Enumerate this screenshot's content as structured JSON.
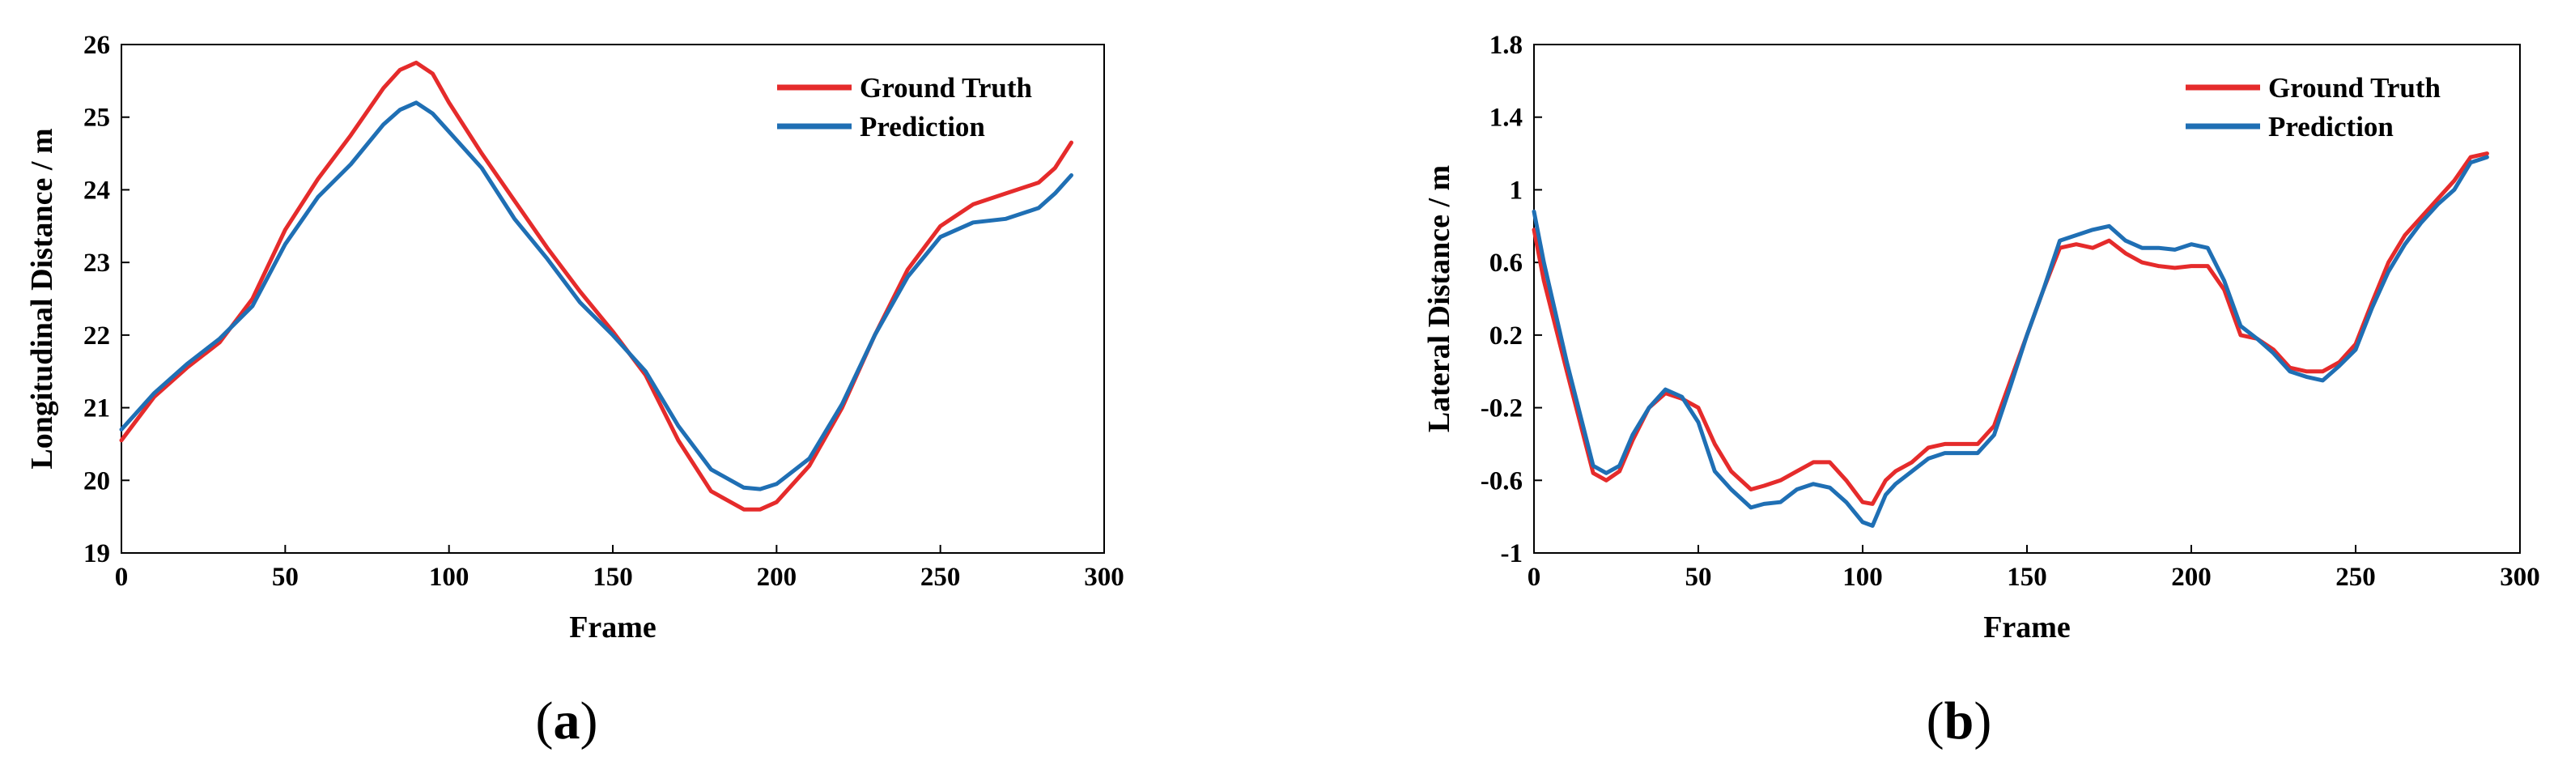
{
  "colors": {
    "ground_truth": "#e52b2b",
    "prediction": "#1f6fb4"
  },
  "chart_data": [
    {
      "type": "line",
      "panel_label": "a",
      "title": "",
      "xlabel": "Frame",
      "ylabel": "Longitudinal Distance / m",
      "xlim": [
        0,
        300
      ],
      "ylim": [
        19,
        26
      ],
      "xticks": [
        0,
        50,
        100,
        150,
        200,
        250,
        300
      ],
      "yticks": [
        19,
        20,
        21,
        22,
        23,
        24,
        25,
        26
      ],
      "legend": {
        "position": "top-right",
        "entries": [
          "Ground Truth",
          "Prediction"
        ]
      },
      "series": [
        {
          "name": "Ground Truth",
          "x": [
            0,
            10,
            20,
            30,
            40,
            50,
            60,
            70,
            80,
            85,
            90,
            95,
            100,
            110,
            120,
            130,
            140,
            150,
            160,
            170,
            180,
            190,
            195,
            200,
            210,
            220,
            230,
            240,
            250,
            260,
            270,
            280,
            285,
            290
          ],
          "y": [
            20.55,
            21.15,
            21.55,
            21.9,
            22.5,
            23.45,
            24.15,
            24.75,
            25.4,
            25.65,
            25.75,
            25.6,
            25.2,
            24.5,
            23.85,
            23.2,
            22.6,
            22.05,
            21.45,
            20.55,
            19.85,
            19.6,
            19.6,
            19.7,
            20.2,
            21.0,
            22.0,
            22.9,
            23.5,
            23.8,
            23.95,
            24.1,
            24.3,
            24.65
          ]
        },
        {
          "name": "Prediction",
          "x": [
            0,
            10,
            20,
            30,
            40,
            50,
            60,
            70,
            80,
            85,
            90,
            95,
            100,
            110,
            120,
            130,
            140,
            150,
            160,
            170,
            180,
            190,
            195,
            200,
            210,
            220,
            230,
            240,
            250,
            260,
            270,
            280,
            285,
            290
          ],
          "y": [
            20.7,
            21.2,
            21.6,
            21.95,
            22.4,
            23.25,
            23.9,
            24.35,
            24.9,
            25.1,
            25.2,
            25.05,
            24.8,
            24.3,
            23.6,
            23.05,
            22.45,
            22.0,
            21.5,
            20.75,
            20.15,
            19.9,
            19.88,
            19.95,
            20.3,
            21.05,
            22.0,
            22.8,
            23.35,
            23.55,
            23.6,
            23.75,
            23.95,
            24.2
          ]
        }
      ]
    },
    {
      "type": "line",
      "panel_label": "b",
      "title": "",
      "xlabel": "Frame",
      "ylabel": "Lateral Distance / m",
      "xlim": [
        0,
        300
      ],
      "ylim": [
        -1,
        1.8
      ],
      "xticks": [
        0,
        50,
        100,
        150,
        200,
        250,
        300
      ],
      "yticks": [
        -1,
        -0.6,
        -0.2,
        0.2,
        0.6,
        1,
        1.4,
        1.8
      ],
      "ytick_labels": [
        "-1",
        "-0.6",
        "-0.2",
        "0.2",
        "0.6",
        "1",
        "1.4",
        "1.8"
      ],
      "legend": {
        "position": "top-right",
        "entries": [
          "Ground Truth",
          "Prediction"
        ]
      },
      "series": [
        {
          "name": "Ground Truth",
          "x": [
            0,
            3,
            10,
            18,
            22,
            26,
            30,
            35,
            40,
            45,
            50,
            55,
            60,
            66,
            70,
            75,
            80,
            85,
            90,
            95,
            100,
            103,
            107,
            110,
            115,
            120,
            125,
            130,
            135,
            140,
            145,
            150,
            155,
            160,
            165,
            170,
            175,
            180,
            185,
            190,
            195,
            200,
            205,
            210,
            215,
            220,
            225,
            230,
            235,
            240,
            245,
            250,
            255,
            260,
            265,
            270,
            275,
            280,
            285,
            290
          ],
          "y": [
            0.78,
            0.5,
            0.0,
            -0.56,
            -0.6,
            -0.55,
            -0.38,
            -0.2,
            -0.12,
            -0.15,
            -0.2,
            -0.4,
            -0.55,
            -0.65,
            -0.63,
            -0.6,
            -0.55,
            -0.5,
            -0.5,
            -0.6,
            -0.72,
            -0.73,
            -0.6,
            -0.55,
            -0.5,
            -0.42,
            -0.4,
            -0.4,
            -0.4,
            -0.3,
            -0.05,
            0.2,
            0.45,
            0.68,
            0.7,
            0.68,
            0.72,
            0.65,
            0.6,
            0.58,
            0.57,
            0.58,
            0.58,
            0.45,
            0.2,
            0.18,
            0.12,
            0.02,
            0.0,
            0.0,
            0.05,
            0.15,
            0.38,
            0.6,
            0.75,
            0.85,
            0.95,
            1.05,
            1.18,
            1.2
          ]
        },
        {
          "name": "Prediction",
          "x": [
            0,
            3,
            10,
            18,
            22,
            26,
            30,
            35,
            40,
            45,
            50,
            55,
            60,
            66,
            70,
            75,
            80,
            85,
            90,
            95,
            100,
            103,
            107,
            110,
            115,
            120,
            125,
            130,
            135,
            140,
            145,
            150,
            155,
            160,
            165,
            170,
            175,
            180,
            185,
            190,
            195,
            200,
            205,
            210,
            215,
            220,
            225,
            230,
            235,
            240,
            245,
            250,
            255,
            260,
            265,
            270,
            275,
            280,
            285,
            290
          ],
          "y": [
            0.88,
            0.6,
            0.05,
            -0.52,
            -0.56,
            -0.52,
            -0.35,
            -0.2,
            -0.1,
            -0.14,
            -0.28,
            -0.55,
            -0.65,
            -0.75,
            -0.73,
            -0.72,
            -0.65,
            -0.62,
            -0.64,
            -0.72,
            -0.83,
            -0.85,
            -0.68,
            -0.62,
            -0.55,
            -0.48,
            -0.45,
            -0.45,
            -0.45,
            -0.35,
            -0.08,
            0.2,
            0.45,
            0.72,
            0.75,
            0.78,
            0.8,
            0.72,
            0.68,
            0.68,
            0.67,
            0.7,
            0.68,
            0.5,
            0.25,
            0.18,
            0.1,
            0.0,
            -0.03,
            -0.05,
            0.03,
            0.12,
            0.35,
            0.55,
            0.7,
            0.82,
            0.92,
            1.0,
            1.15,
            1.18
          ]
        }
      ]
    }
  ]
}
